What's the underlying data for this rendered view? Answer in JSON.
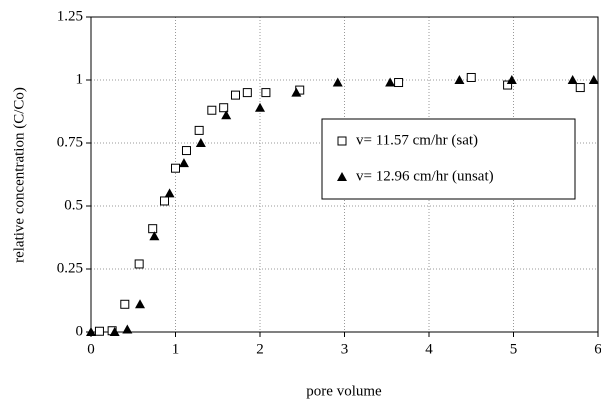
{
  "chart_data": {
    "type": "scatter",
    "x_label": "pore volume",
    "y_label": "relative concentration (C/Co)",
    "xlim": [
      0,
      6
    ],
    "xticks": [
      0,
      1,
      2,
      3,
      4,
      5,
      6
    ],
    "ylim": [
      0,
      1.25
    ],
    "yticks": [
      0,
      0.25,
      0.5,
      0.75,
      1,
      1.25
    ],
    "grid": true,
    "legend": "center right",
    "series": [
      {
        "name": "v= 11.57 cm/hr (sat)",
        "marker": "square",
        "color": "#000000",
        "x": [
          0.1,
          0.25,
          0.4,
          0.57,
          0.73,
          0.87,
          1.0,
          1.13,
          1.28,
          1.43,
          1.57,
          1.71,
          1.85,
          2.07,
          2.47,
          3.64,
          4.5,
          4.93,
          5.79
        ],
        "values": [
          0.003,
          0.005,
          0.11,
          0.27,
          0.41,
          0.52,
          0.65,
          0.72,
          0.8,
          0.88,
          0.89,
          0.94,
          0.95,
          0.95,
          0.96,
          0.99,
          1.01,
          0.98,
          0.97
        ]
      },
      {
        "name": "v= 12.96 cm/hr (unsat)",
        "marker": "triangle",
        "color": "#000000",
        "x": [
          0,
          0.28,
          0.43,
          0.58,
          0.75,
          0.93,
          1.1,
          1.3,
          1.6,
          2.0,
          2.43,
          2.92,
          3.54,
          4.36,
          4.98,
          5.7,
          5.95
        ],
        "values": [
          0,
          0.0,
          0.01,
          0.11,
          0.38,
          0.55,
          0.67,
          0.75,
          0.86,
          0.89,
          0.95,
          0.99,
          0.99,
          1.0,
          1.0,
          1.0,
          1.0
        ]
      }
    ]
  }
}
